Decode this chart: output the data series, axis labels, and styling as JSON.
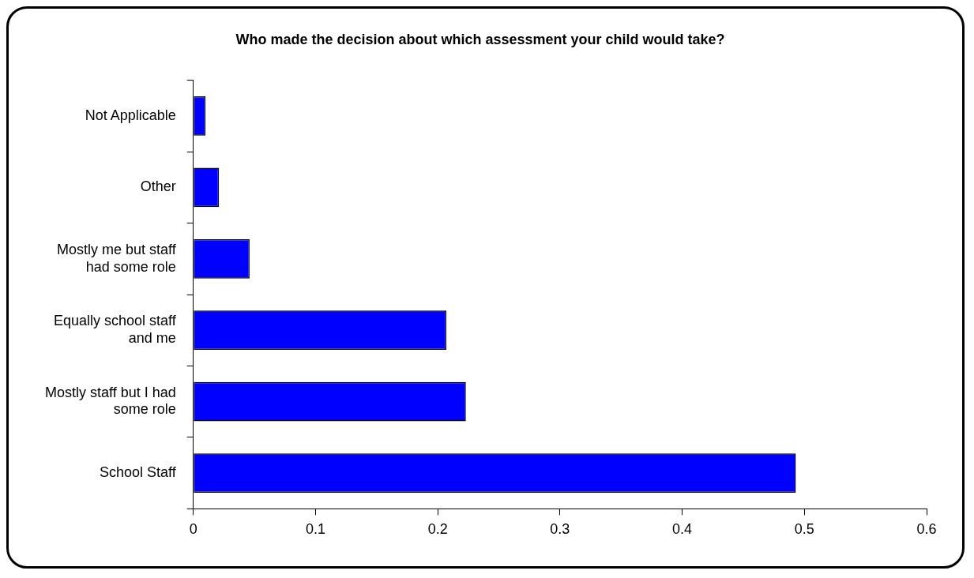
{
  "chart_data": {
    "type": "bar",
    "orientation": "horizontal",
    "title": "Who made the decision about which assessment your child would take?",
    "categories": [
      "Not Applicable",
      "Other",
      "Mostly me but staff had some role",
      "Equally school staff and me",
      "Mostly staff but I had some role",
      "School Staff"
    ],
    "values": [
      0.01,
      0.021,
      0.046,
      0.207,
      0.223,
      0.493
    ],
    "color": "#0000ff",
    "xlim": [
      0,
      0.6
    ],
    "xticks": [
      0,
      0.1,
      0.2,
      0.3,
      0.4,
      0.5,
      0.6
    ],
    "grid": false,
    "legend": false
  }
}
